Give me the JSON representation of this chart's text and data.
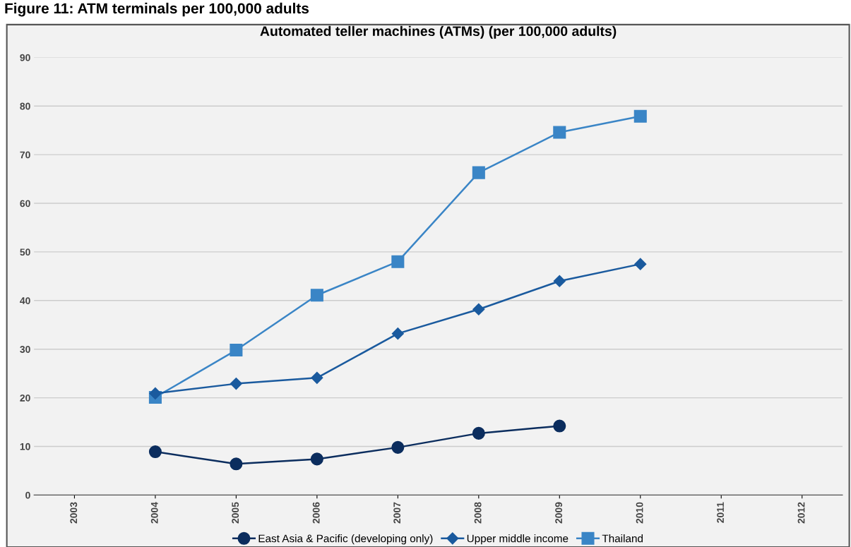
{
  "chart_data": {
    "type": "line",
    "title": "Automated teller machines (ATMs) (per 100,000 adults)",
    "annotations": [
      "Figure 11: ATM terminals per 100,000 adults"
    ],
    "categories": [
      "2003",
      "2004",
      "2005",
      "2006",
      "2007",
      "2008",
      "2009",
      "2010",
      "2011",
      "2012"
    ],
    "series": [
      {
        "name": "East Asia & Pacific (developing only)",
        "color": "#0b2d5e",
        "marker": "circle",
        "values": [
          null,
          8.9,
          6.4,
          7.4,
          9.8,
          12.7,
          14.2,
          null,
          null,
          null
        ]
      },
      {
        "name": "Upper middle income",
        "color": "#1a5a9e",
        "marker": "diamond",
        "values": [
          null,
          20.9,
          22.9,
          24.1,
          33.2,
          38.2,
          44.0,
          47.5,
          null,
          null
        ]
      },
      {
        "name": "Thailand",
        "color": "#3a85c6",
        "marker": "square",
        "values": [
          null,
          20.1,
          29.8,
          41.1,
          48.0,
          66.3,
          74.6,
          77.9,
          null,
          null
        ]
      }
    ],
    "ylim": [
      0,
      90
    ],
    "yticks": [
      0,
      10,
      20,
      30,
      40,
      50,
      60,
      70,
      80,
      90
    ],
    "grid": "y",
    "legend": "bottom",
    "line_style": "solid"
  }
}
